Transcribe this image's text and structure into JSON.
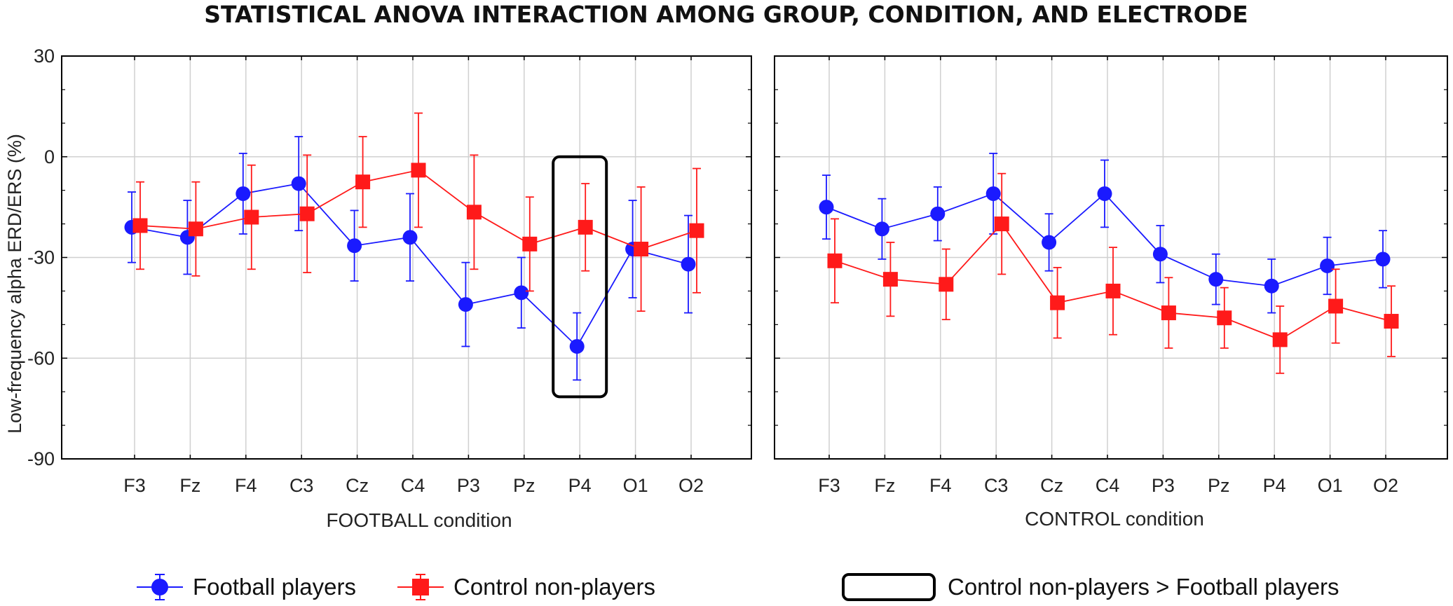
{
  "chart_data": {
    "type": "line",
    "title": "STATISTICAL ANOVA INTERACTION AMONG GROUP, CONDITION, AND ELECTRODE",
    "ylabel": "Low-frequency alpha ERD/ERS (%)",
    "ylim": [
      -90,
      30
    ],
    "yticks": [
      30,
      0,
      -30,
      -60,
      -90
    ],
    "grid": true,
    "categories": [
      "F3",
      "Fz",
      "F4",
      "C3",
      "Cz",
      "C4",
      "P3",
      "Pz",
      "P4",
      "O1",
      "O2"
    ],
    "colors": {
      "football": "#1a1aff",
      "control": "#ff1a1a",
      "highlight": "#000000"
    },
    "panels": [
      {
        "xlabel": "FOOTBALL condition",
        "series": [
          {
            "name": "Football players",
            "color": "#1a1aff",
            "marker": "circle",
            "values": [
              -21,
              -24,
              -11,
              -8,
              -26.5,
              -24,
              -44,
              -40.5,
              -56.5,
              -27.5,
              -32
            ],
            "errors": [
              10.5,
              11,
              12,
              14,
              10.5,
              13,
              12.5,
              10.5,
              10,
              14.5,
              14.5
            ]
          },
          {
            "name": "Control non-players",
            "color": "#ff1a1a",
            "marker": "square",
            "values": [
              -20.5,
              -21.5,
              -18,
              -17,
              -7.5,
              -4,
              -16.5,
              -26,
              -21,
              -27.5,
              -22
            ],
            "errors": [
              13,
              14,
              15.5,
              17.5,
              13.5,
              17,
              17,
              14,
              13,
              18.5,
              18.5
            ]
          }
        ],
        "highlight": {
          "category": "P4",
          "legend": "Control non-players > Football players"
        }
      },
      {
        "xlabel": "CONTROL condition",
        "series": [
          {
            "name": "Football players",
            "color": "#1a1aff",
            "marker": "circle",
            "values": [
              -15,
              -21.5,
              -17,
              -11,
              -25.5,
              -11,
              -29,
              -36.5,
              -38.5,
              -32.5,
              -30.5
            ],
            "errors": [
              9.5,
              9,
              8,
              12,
              8.5,
              10,
              8.5,
              7.5,
              8,
              8.5,
              8.5
            ]
          },
          {
            "name": "Control non-players",
            "color": "#ff1a1a",
            "marker": "square",
            "values": [
              -31,
              -36.5,
              -38,
              -20,
              -43.5,
              -40,
              -46.5,
              -48,
              -54.5,
              -44.5,
              -49
            ],
            "errors": [
              12.5,
              11,
              10.5,
              15,
              10.5,
              13,
              10.5,
              9,
              10,
              11,
              10.5
            ]
          }
        ]
      }
    ],
    "legend": [
      {
        "label": "Football players",
        "color": "#1a1aff",
        "marker": "circle"
      },
      {
        "label": "Control non-players",
        "color": "#ff1a1a",
        "marker": "square"
      },
      {
        "label": "Control non-players > Football players",
        "color": "#000000",
        "marker": "box"
      }
    ]
  }
}
